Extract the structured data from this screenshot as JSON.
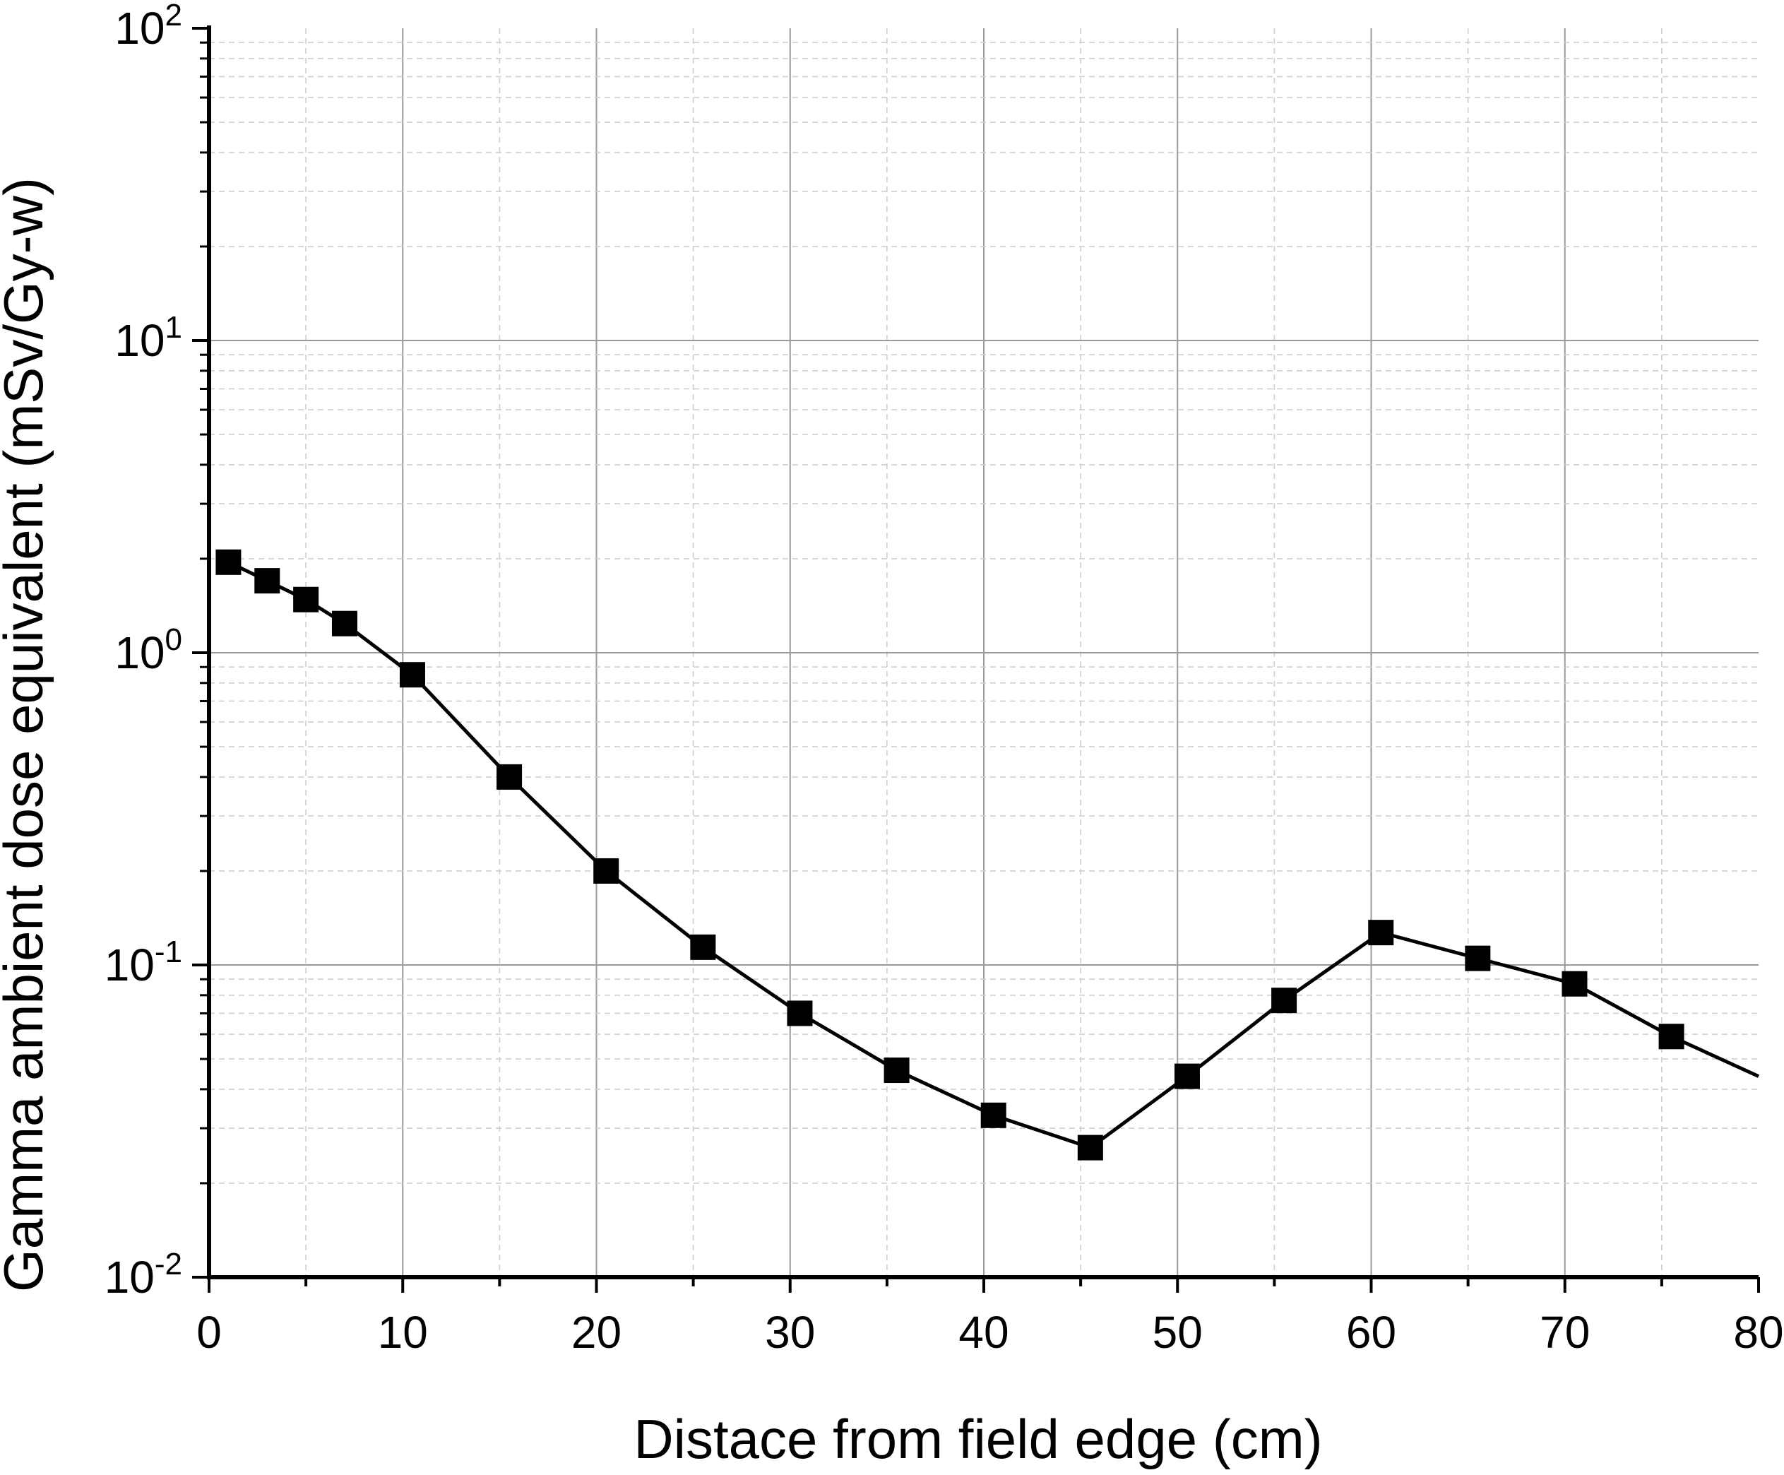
{
  "chart_data": {
    "type": "line",
    "xlabel": "Distace from field edge (cm)",
    "ylabel": "Gamma ambient dose equivalent (mSv/Gy-w)",
    "xlim": [
      0,
      80
    ],
    "ylim": [
      0.01,
      100
    ],
    "yscale": "log",
    "grid": true,
    "x_ticks": [
      "0",
      "10",
      "20",
      "30",
      "40",
      "50",
      "60",
      "70",
      "80"
    ],
    "y_ticks": [
      {
        "base": "10",
        "exp": "-2"
      },
      {
        "base": "10",
        "exp": "-1"
      },
      {
        "base": "10",
        "exp": "0"
      },
      {
        "base": "10",
        "exp": "1"
      },
      {
        "base": "10",
        "exp": "2"
      }
    ],
    "series": [
      {
        "marker": "square",
        "color": "#000000",
        "x": [
          1,
          3,
          5,
          7,
          10.5,
          15.5,
          20.5,
          25.5,
          30.5,
          35.5,
          40.5,
          45.5,
          50.5,
          55.5,
          60.5,
          65.5,
          70.5,
          75.5
        ],
        "y": [
          1.95,
          1.7,
          1.48,
          1.24,
          0.85,
          0.4,
          0.2,
          0.114,
          0.07,
          0.046,
          0.033,
          0.026,
          0.044,
          0.077,
          0.127,
          0.105,
          0.087,
          0.059
        ],
        "line_end": {
          "x": 80,
          "y": 0.044
        }
      }
    ]
  }
}
